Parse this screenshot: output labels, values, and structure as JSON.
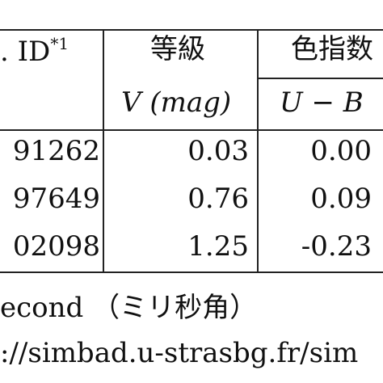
{
  "table": {
    "headers": {
      "id": ". ID",
      "id_note": "*1",
      "magnitude_group": "等級",
      "magnitude_sub": "V (mag)",
      "color_group": "色指数",
      "color_sub": "U − B"
    },
    "rows": [
      {
        "id": "91262",
        "v": "0.03",
        "ub": "0.00"
      },
      {
        "id": "97649",
        "v": "0.76",
        "ub": "0.09"
      },
      {
        "id": "02098",
        "v": "1.25",
        "ub": "-0.23"
      }
    ]
  },
  "notes": {
    "line1": "econd （ミリ秒角）",
    "line2": "://simbad.u-strasbg.fr/sim"
  }
}
